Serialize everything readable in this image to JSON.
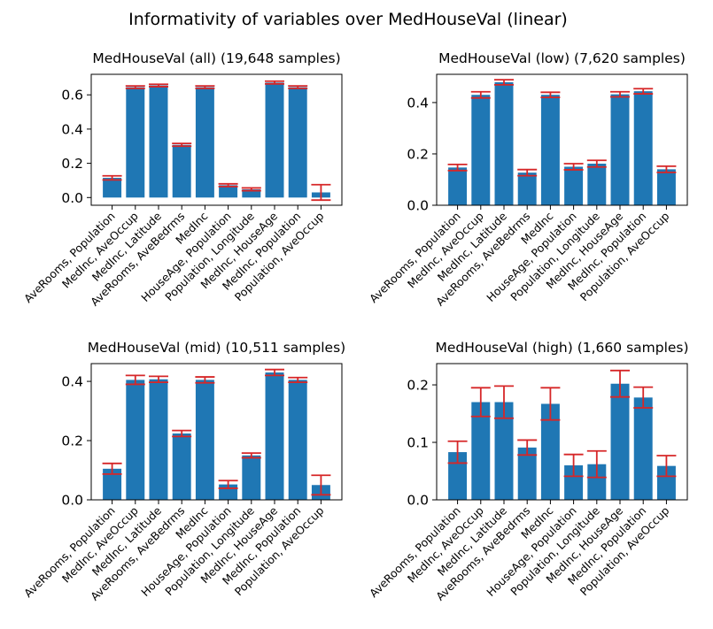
{
  "figure": {
    "title": "Informativity of variables over MedHouseVal (linear)"
  },
  "style": {
    "bar_color": "#1f77b4",
    "error_color": "#d62728"
  },
  "chart_data": [
    {
      "type": "bar",
      "title": "MedHouseVal (all) (19,648 samples)",
      "categories": [
        "AveRooms, Population",
        "MedInc, AveOccup",
        "MedInc, Latitude",
        "AveRooms, AveBedrms",
        "MedInc",
        "HouseAge, Population",
        "Population, Longitude",
        "MedInc, HouseAge",
        "MedInc, Population",
        "Population, AveOccup"
      ],
      "values": [
        0.115,
        0.645,
        0.655,
        0.308,
        0.645,
        0.072,
        0.048,
        0.672,
        0.645,
        0.03
      ],
      "errors": [
        0.012,
        0.007,
        0.007,
        0.008,
        0.007,
        0.008,
        0.008,
        0.008,
        0.007,
        0.045
      ],
      "ylim": [
        -0.045,
        0.72
      ],
      "yticks": [
        0.0,
        0.2,
        0.4,
        0.6
      ],
      "ytick_labels": [
        "0.0",
        "0.2",
        "0.4",
        "0.6"
      ],
      "xlabel": "",
      "ylabel": "",
      "grid": false
    },
    {
      "type": "bar",
      "title": "MedHouseVal (low) (7,620 samples)",
      "categories": [
        "AveRooms, Population",
        "MedInc, AveOccup",
        "MedInc, Latitude",
        "AveRooms, AveBedrms",
        "MedInc",
        "HouseAge, Population",
        "Population, Longitude",
        "MedInc, HouseAge",
        "MedInc, Population",
        "Population, AveOccup"
      ],
      "values": [
        0.147,
        0.43,
        0.479,
        0.127,
        0.43,
        0.15,
        0.162,
        0.432,
        0.444,
        0.14
      ],
      "errors": [
        0.012,
        0.012,
        0.01,
        0.012,
        0.01,
        0.012,
        0.013,
        0.01,
        0.01,
        0.012
      ],
      "ylim": [
        0.0,
        0.51
      ],
      "yticks": [
        0.0,
        0.2,
        0.4
      ],
      "ytick_labels": [
        "0.0",
        "0.2",
        "0.4"
      ],
      "xlabel": "",
      "ylabel": "",
      "grid": false
    },
    {
      "type": "bar",
      "title": "MedHouseVal (mid) (10,511 samples)",
      "categories": [
        "AveRooms, Population",
        "MedInc, AveOccup",
        "MedInc, Latitude",
        "AveRooms, AveBedrms",
        "MedInc",
        "HouseAge, Population",
        "Population, Longitude",
        "MedInc, HouseAge",
        "MedInc, Population",
        "Population, AveOccup"
      ],
      "values": [
        0.105,
        0.405,
        0.407,
        0.224,
        0.405,
        0.052,
        0.15,
        0.43,
        0.405,
        0.05
      ],
      "errors": [
        0.018,
        0.015,
        0.01,
        0.01,
        0.01,
        0.013,
        0.008,
        0.01,
        0.008,
        0.033
      ],
      "ylim": [
        0.0,
        0.46
      ],
      "yticks": [
        0.0,
        0.2,
        0.4
      ],
      "ytick_labels": [
        "0.0",
        "0.2",
        "0.4"
      ],
      "xlabel": "",
      "ylabel": "",
      "grid": false
    },
    {
      "type": "bar",
      "title": "MedHouseVal (high) (1,660 samples)",
      "categories": [
        "AveRooms, Population",
        "MedInc, AveOccup",
        "MedInc, Latitude",
        "AveRooms, AveBedrms",
        "MedInc",
        "HouseAge, Population",
        "Population, Longitude",
        "MedInc, HouseAge",
        "MedInc, Population",
        "Population, AveOccup"
      ],
      "values": [
        0.083,
        0.17,
        0.17,
        0.091,
        0.167,
        0.06,
        0.062,
        0.202,
        0.178,
        0.059
      ],
      "errors": [
        0.019,
        0.025,
        0.028,
        0.013,
        0.028,
        0.019,
        0.023,
        0.023,
        0.018,
        0.018
      ],
      "ylim": [
        0.0,
        0.237
      ],
      "yticks": [
        0.0,
        0.1,
        0.2
      ],
      "ytick_labels": [
        "0.0",
        "0.1",
        "0.2"
      ],
      "xlabel": "",
      "ylabel": "",
      "grid": false
    }
  ]
}
